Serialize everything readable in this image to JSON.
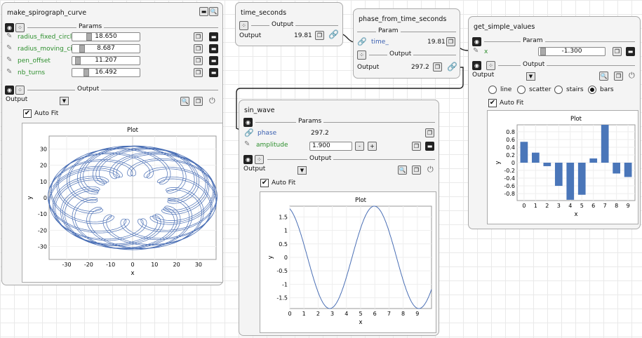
{
  "spiro": {
    "title": "make_spirograph_curve",
    "params_label": "Params",
    "params": [
      {
        "name": "radius_fixed_circl.",
        "value": "18.650"
      },
      {
        "name": "radius_moving_ci.",
        "value": "8.687"
      },
      {
        "name": "pen_offset",
        "value": "11.207"
      },
      {
        "name": "nb_turns",
        "value": "16.492"
      }
    ],
    "output_label": "Output",
    "output_name": "Output",
    "autofit": "Auto Fit",
    "plot_title": "Plot",
    "xlabel": "x",
    "ylabel": "y",
    "xticks": [
      "-30",
      "-20",
      "-10",
      "0",
      "10",
      "20",
      "30"
    ],
    "yticks": [
      "30",
      "20",
      "10",
      "0",
      "-10",
      "-20",
      "-30"
    ]
  },
  "time": {
    "title": "time_seconds",
    "output_label": "Output",
    "output_name": "Output",
    "value": "19.81"
  },
  "phase": {
    "title": "phase_from_time_seconds",
    "param_label": "Param",
    "param_name": "time_",
    "param_value": "19.81",
    "output_label": "Output",
    "output_name": "Output",
    "output_value": "297.2"
  },
  "sin": {
    "title": "sin_wave",
    "params_label": "Params",
    "phase_name": "phase",
    "phase_value": "297.2",
    "amp_name": "amplitude",
    "amp_value": "1.900",
    "minus": "-",
    "plus": "+",
    "output_label": "Output",
    "output_name": "Output",
    "autofit": "Auto Fit",
    "plot_title": "Plot",
    "xlabel": "x",
    "ylabel": "y",
    "xticks": [
      "0",
      "1",
      "2",
      "3",
      "4",
      "5",
      "6",
      "7",
      "8",
      "9"
    ],
    "yticks": [
      "1.5",
      "1",
      "0.5",
      "0",
      "-0.5",
      "-1",
      "-1.5"
    ]
  },
  "simple": {
    "title": "get_simple_values",
    "param_label": "Param",
    "param_name": "x",
    "param_value": "-1.300",
    "output_label": "Output",
    "output_name": "Output",
    "radio": [
      "line",
      "scatter",
      "stairs",
      "bars"
    ],
    "radio_selected": "bars",
    "autofit": "Auto Fit",
    "plot_title": "Plot",
    "xlabel": "x",
    "ylabel": "y",
    "xticks": [
      "0",
      "1",
      "2",
      "3",
      "4",
      "5",
      "6",
      "7",
      "8",
      "9"
    ],
    "yticks": [
      "0.8",
      "0.6",
      "0.4",
      "0.2",
      "0",
      "-0.2",
      "-0.4",
      "-0.6",
      "-0.8"
    ]
  },
  "colors": {
    "plot_line": "#4a6fb5",
    "bar": "#4a76b9",
    "param_green": "#2d8f2d",
    "link_blue": "#3a5fb0"
  },
  "chart_data": [
    {
      "type": "line",
      "title": "Plot",
      "xlabel": "x",
      "ylabel": "y",
      "curve": "spirograph",
      "radius_fixed_circle": 18.65,
      "radius_moving_circle": 8.687,
      "pen_offset": 11.207,
      "nb_turns": 16.492,
      "xlim": [
        -38,
        38
      ],
      "ylim": [
        -38,
        38
      ],
      "grid": true
    },
    {
      "type": "line",
      "title": "Plot",
      "xlabel": "x",
      "ylabel": "y",
      "function": "amplitude*sin(x+phase)",
      "amplitude": 1.9,
      "phase": 297.2,
      "xlim": [
        0,
        10
      ],
      "ylim": [
        -1.9,
        1.9
      ],
      "grid": true
    },
    {
      "type": "bar",
      "title": "Plot",
      "xlabel": "x",
      "ylabel": "y",
      "categories": [
        0,
        1,
        2,
        3,
        4,
        5,
        6,
        7,
        8,
        9
      ],
      "values": [
        0.54,
        0.26,
        -0.09,
        -0.6,
        -0.96,
        -0.83,
        0.11,
        0.98,
        -0.28,
        -0.37
      ],
      "ylim": [
        -0.98,
        0.98
      ],
      "grid": true
    }
  ]
}
